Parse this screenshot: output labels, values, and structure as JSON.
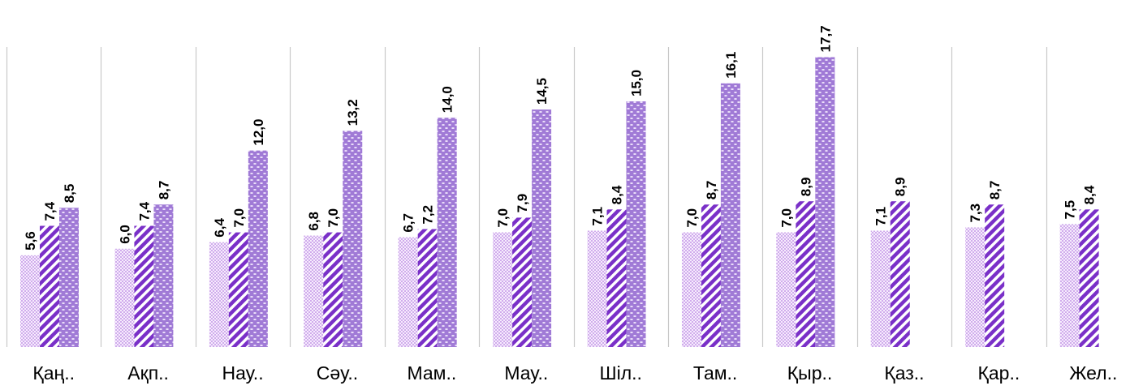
{
  "chart_data": {
    "type": "bar",
    "categories": [
      "Қаң..",
      "Ақп..",
      "Нау..",
      "Сәу..",
      "Мам..",
      "Мау..",
      "Шіл..",
      "Там..",
      "Қыр..",
      "Қаз..",
      "Қар..",
      "Жел.."
    ],
    "series": [
      {
        "values": [
          5.6,
          6.0,
          6.4,
          6.8,
          6.7,
          7.0,
          7.1,
          7.0,
          7.0,
          7.1,
          7.3,
          7.5
        ],
        "labels": [
          "5,6",
          "6,0",
          "6,4",
          "6,8",
          "6,7",
          "7,0",
          "7,1",
          "7,0",
          "7,0",
          "7,1",
          "7,3",
          "7,5"
        ],
        "pattern": "dots",
        "color": "#b57fe0"
      },
      {
        "values": [
          7.4,
          7.4,
          7.0,
          7.0,
          7.2,
          7.9,
          8.4,
          8.7,
          8.9,
          8.9,
          8.7,
          8.4
        ],
        "labels": [
          "7,4",
          "7,4",
          "7,0",
          "7,0",
          "7,2",
          "7,9",
          "8,4",
          "8,7",
          "8,9",
          "8,9",
          "8,7",
          "8,4"
        ],
        "pattern": "diagonal-stripes",
        "color": "#7a30c8"
      },
      {
        "values": [
          8.5,
          8.7,
          12.0,
          13.2,
          14.0,
          14.5,
          15.0,
          16.1,
          17.7,
          null,
          null,
          null
        ],
        "labels": [
          "8,5",
          "8,7",
          "12,0",
          "13,2",
          "14,0",
          "14,5",
          "15,0",
          "16,1",
          "17,7",
          null,
          null,
          null
        ],
        "pattern": "confetti",
        "color": "#a07ad6"
      }
    ],
    "grid": "vertical category separators",
    "legend": "none",
    "ylim": [
      0,
      21
    ]
  }
}
